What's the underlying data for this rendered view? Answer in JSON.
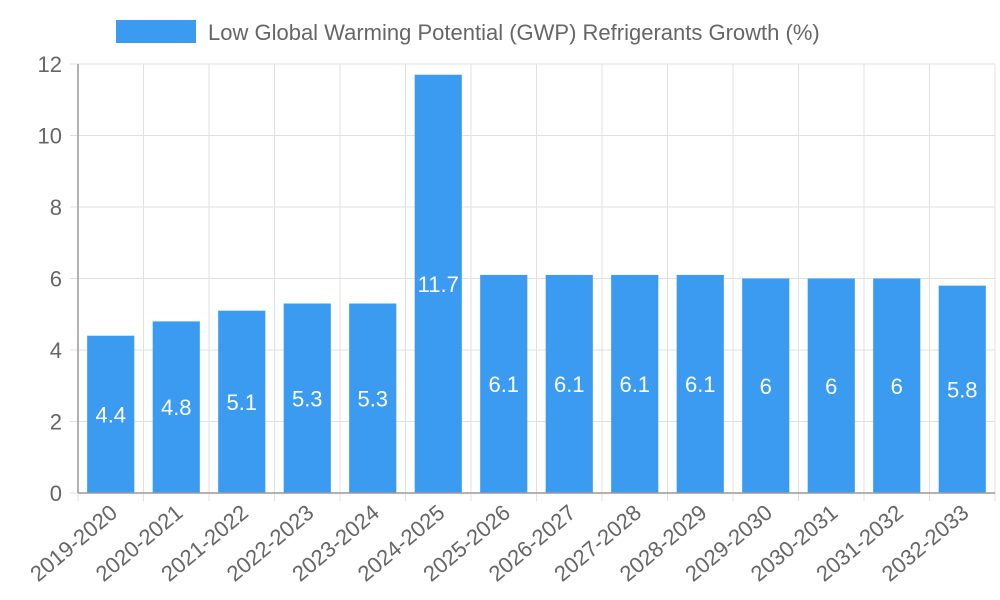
{
  "chart_data": {
    "type": "bar",
    "title": "",
    "xlabel": "",
    "ylabel": "",
    "categories": [
      "2019-2020",
      "2020-2021",
      "2021-2022",
      "2022-2023",
      "2023-2024",
      "2024-2025",
      "2025-2026",
      "2026-2027",
      "2027-2028",
      "2028-2029",
      "2029-2030",
      "2030-2031",
      "2031-2032",
      "2032-2033"
    ],
    "series": [
      {
        "name": "Low Global Warming Potential (GWP) Refrigerants Growth (%)",
        "values": [
          4.4,
          4.8,
          5.1,
          5.3,
          5.3,
          11.7,
          6.1,
          6.1,
          6.1,
          6.1,
          6,
          6,
          6,
          5.8
        ],
        "labels": [
          "4.4",
          "4.8",
          "5.1",
          "5.3",
          "5.3",
          "11.7",
          "6.1",
          "6.1",
          "6.1",
          "6.1",
          "6",
          "6",
          "6",
          "5.8"
        ],
        "color": "#3a9bf0"
      }
    ],
    "ylim": [
      0,
      12
    ],
    "yticks": [
      0,
      2,
      4,
      6,
      8,
      10,
      12
    ],
    "ytick_labels": [
      "0",
      "2",
      "4",
      "6",
      "8",
      "10",
      "12"
    ],
    "grid": true,
    "legend_position": "top-center"
  },
  "colors": {
    "bar": "#3a9bf0",
    "grid": "#e0e0e0",
    "axis": "#999999",
    "text": "#666666",
    "label": "#ffffff"
  }
}
